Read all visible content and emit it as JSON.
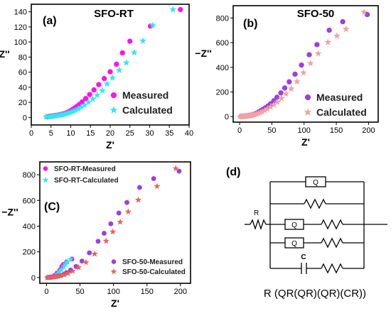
{
  "colors": {
    "sfo_rt_measured": "#ff10f0",
    "sfo_rt_calculated": "#2ee8f0",
    "sfo_50_measured": "#9b3fe0",
    "sfo_50_calculated": "#f4a0a0",
    "sfo_50_calculated_c": "#f06050",
    "axis": "#000000"
  },
  "chart_data": [
    {
      "type": "scatter",
      "panel_label": "(a)",
      "title": "SFO-RT",
      "xlabel": "Z'",
      "ylabel": "−Z''",
      "xlim": [
        0,
        40
      ],
      "ylim": [
        -10,
        150
      ],
      "xticks": [
        0,
        5,
        10,
        15,
        20,
        25,
        30,
        35,
        40
      ],
      "yticks": [
        0,
        20,
        40,
        60,
        80,
        100,
        120,
        140
      ],
      "legend_position": "lower-right",
      "series": [
        {
          "name": "Measured",
          "marker": "circle",
          "color_key": "sfo_rt_measured",
          "points": [
            [
              4.0,
              0.8
            ],
            [
              4.5,
              1.2
            ],
            [
              5.0,
              1.6
            ],
            [
              5.5,
              2.0
            ],
            [
              6.0,
              2.4
            ],
            [
              6.5,
              2.8
            ],
            [
              7.0,
              3.3
            ],
            [
              7.5,
              3.9
            ],
            [
              8.0,
              4.6
            ],
            [
              8.5,
              5.4
            ],
            [
              9.0,
              6.4
            ],
            [
              9.5,
              7.6
            ],
            [
              10.0,
              9.0
            ],
            [
              10.5,
              10.6
            ],
            [
              11.0,
              12.4
            ],
            [
              11.6,
              14.7
            ],
            [
              12.2,
              17.3
            ],
            [
              12.9,
              20.5
            ],
            [
              13.8,
              25.0
            ],
            [
              14.8,
              30.3
            ],
            [
              15.9,
              36.5
            ],
            [
              17.1,
              43.5
            ],
            [
              18.5,
              51.5
            ],
            [
              20.0,
              60.5
            ],
            [
              21.6,
              70.5
            ],
            [
              23.1,
              85.5
            ],
            [
              25.0,
              101.0
            ],
            [
              30.2,
              121.0
            ],
            [
              37.8,
              143.0
            ]
          ]
        },
        {
          "name": "Calculated",
          "marker": "star",
          "color_key": "sfo_rt_calculated",
          "points": [
            [
              3.8,
              0.8
            ],
            [
              4.3,
              1.0
            ],
            [
              4.8,
              1.3
            ],
            [
              5.3,
              1.6
            ],
            [
              5.8,
              2.0
            ],
            [
              6.3,
              2.3
            ],
            [
              6.8,
              2.7
            ],
            [
              7.3,
              3.2
            ],
            [
              7.8,
              3.7
            ],
            [
              8.3,
              4.2
            ],
            [
              8.8,
              4.9
            ],
            [
              9.3,
              5.6
            ],
            [
              9.8,
              6.4
            ],
            [
              10.3,
              7.3
            ],
            [
              10.8,
              8.4
            ],
            [
              11.3,
              9.6
            ],
            [
              11.9,
              11.3
            ],
            [
              12.6,
              13.5
            ],
            [
              13.5,
              16.5
            ],
            [
              14.5,
              20.0
            ],
            [
              15.6,
              24.5
            ],
            [
              16.7,
              29.5
            ],
            [
              18.0,
              35.5
            ],
            [
              19.2,
              44.5
            ],
            [
              20.6,
              52.5
            ],
            [
              22.3,
              62.5
            ],
            [
              24.1,
              72.5
            ],
            [
              26.1,
              86.0
            ],
            [
              28.3,
              101.5
            ],
            [
              30.8,
              122.0
            ],
            [
              35.9,
              143.0
            ]
          ]
        }
      ]
    },
    {
      "type": "scatter",
      "panel_label": "(b)",
      "title": "SFO-50",
      "xlabel": "Z'",
      "ylabel": "−Z''",
      "xlim": [
        -10,
        215
      ],
      "ylim": [
        -45,
        900
      ],
      "xticks": [
        0,
        50,
        100,
        150,
        200
      ],
      "yticks": [
        0,
        200,
        400,
        600,
        800
      ],
      "legend_position": "lower-right",
      "series": [
        {
          "name": "Measured",
          "marker": "circle",
          "color_key": "sfo_50_measured",
          "points": [
            [
              2,
              0
            ],
            [
              4,
              1
            ],
            [
              6,
              2
            ],
            [
              8,
              3
            ],
            [
              10,
              4
            ],
            [
              12,
              5
            ],
            [
              14,
              7
            ],
            [
              16,
              9
            ],
            [
              18,
              11
            ],
            [
              20,
              14
            ],
            [
              22,
              17
            ],
            [
              24,
              21
            ],
            [
              26,
              26
            ],
            [
              28,
              32
            ],
            [
              30,
              39
            ],
            [
              33,
              48
            ],
            [
              36,
              58
            ],
            [
              40,
              71
            ],
            [
              44,
              86
            ],
            [
              48,
              104
            ],
            [
              53,
              128
            ],
            [
              58,
              157
            ],
            [
              64,
              192
            ],
            [
              70,
              232
            ],
            [
              77,
              282
            ],
            [
              86,
              344
            ],
            [
              96,
              418
            ],
            [
              108,
              502
            ],
            [
              120,
              584
            ],
            [
              139,
              701
            ],
            [
              160,
              770
            ],
            [
              198,
              828
            ]
          ]
        },
        {
          "name": "Calculated",
          "marker": "star",
          "color_key": "sfo_50_calculated",
          "points": [
            [
              1,
              0
            ],
            [
              3,
              1
            ],
            [
              5,
              2
            ],
            [
              7,
              3
            ],
            [
              9,
              4
            ],
            [
              11,
              5
            ],
            [
              13,
              6
            ],
            [
              15,
              8
            ],
            [
              17,
              10
            ],
            [
              19,
              12
            ],
            [
              21,
              14
            ],
            [
              23,
              17
            ],
            [
              26,
              21
            ],
            [
              29,
              26
            ],
            [
              32,
              32
            ],
            [
              35,
              40
            ],
            [
              39,
              50
            ],
            [
              43,
              62
            ],
            [
              48,
              78
            ],
            [
              53,
              96
            ],
            [
              59,
              118
            ],
            [
              65,
              148
            ],
            [
              72,
              184
            ],
            [
              80,
              226
            ],
            [
              89,
              284
            ],
            [
              99,
              356
            ],
            [
              110,
              432
            ],
            [
              122,
              512
            ],
            [
              137,
              604
            ],
            [
              151,
              655
            ],
            [
              165,
              710
            ],
            [
              193,
              848
            ]
          ]
        }
      ]
    },
    {
      "type": "scatter",
      "panel_label": "(C)",
      "title": "",
      "xlabel": "Z'",
      "ylabel": "−Z''",
      "xlim": [
        -10,
        215
      ],
      "ylim": [
        -45,
        900
      ],
      "xticks": [
        0,
        50,
        100,
        150,
        200
      ],
      "yticks": [
        0,
        200,
        400,
        600,
        800
      ],
      "legend_top_position": "upper-left",
      "legend_bottom_position": "lower-right",
      "series": [
        {
          "name": "SFO-RT-Measured",
          "marker": "circle",
          "color_key": "sfo_rt_measured",
          "points": [
            [
              4,
              1
            ],
            [
              8,
              5
            ],
            [
              12,
              17
            ],
            [
              16,
              37
            ],
            [
              20,
              60
            ],
            [
              23,
              86
            ],
            [
              25,
              101
            ],
            [
              30,
              121
            ],
            [
              38,
              143
            ]
          ]
        },
        {
          "name": "SFO-RT-Calculated",
          "marker": "star",
          "color_key": "sfo_rt_calculated",
          "points": [
            [
              4,
              1
            ],
            [
              7,
              3
            ],
            [
              10,
              6
            ],
            [
              13,
              12
            ],
            [
              16,
              25
            ],
            [
              19,
              44
            ],
            [
              22,
              62
            ],
            [
              26,
              86
            ],
            [
              28,
              101
            ],
            [
              31,
              122
            ],
            [
              36,
              143
            ]
          ]
        },
        {
          "name": "SFO-50-Measured",
          "marker": "circle",
          "color_key": "sfo_50_measured",
          "points": [
            [
              2,
              0
            ],
            [
              6,
              2
            ],
            [
              10,
              4
            ],
            [
              14,
              7
            ],
            [
              18,
              11
            ],
            [
              22,
              17
            ],
            [
              26,
              26
            ],
            [
              30,
              39
            ],
            [
              36,
              58
            ],
            [
              44,
              86
            ],
            [
              53,
              128
            ],
            [
              64,
              192
            ],
            [
              77,
              282
            ],
            [
              86,
              344
            ],
            [
              96,
              418
            ],
            [
              108,
              502
            ],
            [
              120,
              584
            ],
            [
              139,
              701
            ],
            [
              160,
              770
            ],
            [
              198,
              828
            ]
          ]
        },
        {
          "name": "SFO-50-Calculated",
          "marker": "star",
          "color_key": "sfo_50_calculated_c",
          "points": [
            [
              1,
              0
            ],
            [
              5,
              2
            ],
            [
              9,
              4
            ],
            [
              13,
              6
            ],
            [
              17,
              10
            ],
            [
              21,
              14
            ],
            [
              26,
              21
            ],
            [
              32,
              32
            ],
            [
              39,
              50
            ],
            [
              48,
              78
            ],
            [
              59,
              118
            ],
            [
              72,
              184
            ],
            [
              89,
              284
            ],
            [
              99,
              356
            ],
            [
              110,
              432
            ],
            [
              122,
              512
            ],
            [
              137,
              604
            ],
            [
              165,
              710
            ],
            [
              193,
              848
            ]
          ]
        }
      ]
    }
  ],
  "circuit": {
    "panel_label": "(d)",
    "label_r": "R",
    "label_q_top": "Q",
    "label_q_mid": "Q",
    "label_q_low": "Q",
    "label_c": "C",
    "expression": "R (QR(QR)(QR)(CR))"
  }
}
